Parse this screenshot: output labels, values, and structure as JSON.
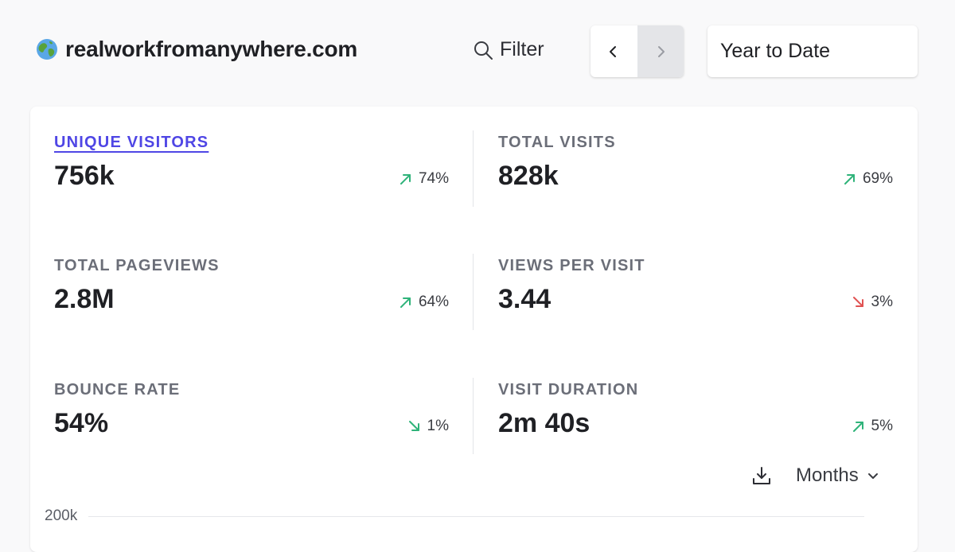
{
  "header": {
    "site_name": "realworkfromanywhere.com",
    "site_icon": "globe-icon",
    "filter_label": "Filter",
    "period_label": "Year to Date"
  },
  "metrics": [
    {
      "label": "UNIQUE VISITORS",
      "value": "756k",
      "change": "74%",
      "direction": "up",
      "active": true
    },
    {
      "label": "TOTAL VISITS",
      "value": "828k",
      "change": "69%",
      "direction": "up",
      "active": false
    },
    {
      "label": "TOTAL PAGEVIEWS",
      "value": "2.8M",
      "change": "64%",
      "direction": "up",
      "active": false
    },
    {
      "label": "VIEWS PER VISIT",
      "value": "3.44",
      "change": "3%",
      "direction": "down",
      "active": false
    },
    {
      "label": "BOUNCE RATE",
      "value": "54%",
      "change": "1%",
      "direction": "down",
      "active": false
    },
    {
      "label": "VISIT DURATION",
      "value": "2m 40s",
      "change": "5%",
      "direction": "up",
      "active": false
    }
  ],
  "chart_controls": {
    "interval_label": "Months"
  },
  "chart_data": {
    "type": "line",
    "y_ticks": [
      "200k"
    ]
  },
  "colors": {
    "accent": "#4f46e5",
    "positive": "#2fb37a",
    "negative_down_good": "#2fb37a",
    "negative": "#e05252"
  }
}
